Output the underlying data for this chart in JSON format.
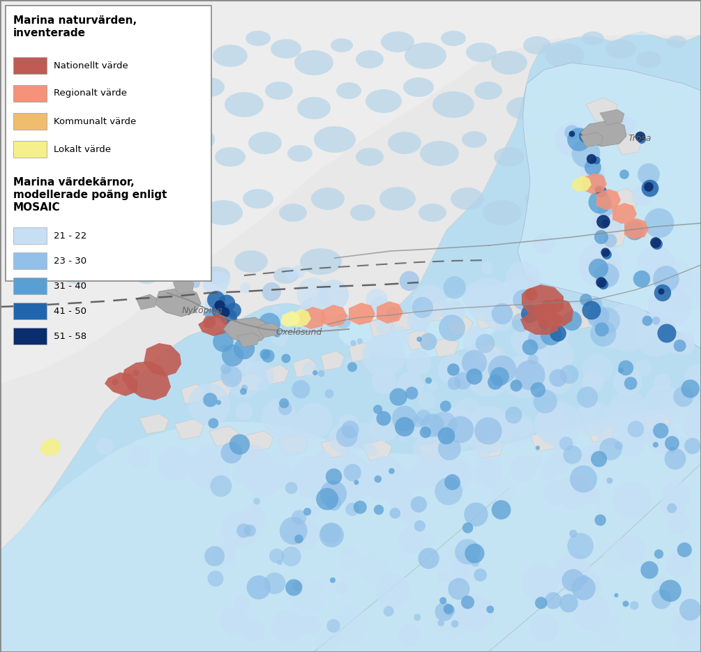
{
  "legend_section1_title": "Marina naturvärden,\ninventerade",
  "legend_section2_title": "Marina värdekärnor,\nmodellerade poäng enligt\nMOSAIC",
  "legend1_items": [
    {
      "label": "Nationellt värde",
      "color": "#bf5b52"
    },
    {
      "label": "Regionalt värde",
      "color": "#f4937a"
    },
    {
      "label": "Kommunalt värde",
      "color": "#f0bc6e"
    },
    {
      "label": "Lokalt värde",
      "color": "#f5f08a"
    }
  ],
  "legend2_items": [
    {
      "label": "21 - 22",
      "color": "#c6dff5"
    },
    {
      "label": "23 - 30",
      "color": "#93c0e8"
    },
    {
      "label": "31 - 40",
      "color": "#5a9fd4"
    },
    {
      "label": "41 - 50",
      "color": "#2166ac"
    },
    {
      "label": "51 - 58",
      "color": "#0a2d6e"
    }
  ],
  "bg_water_deep": "#b8ddf0",
  "bg_water_shallow": "#c8e8f6",
  "bg_water_coast": "#d4eef8",
  "land_main": "#e8e8e8",
  "land_light": "#f0f0f0",
  "inland_water": "#b4d4e8",
  "urban_gray": "#aaaaaa",
  "border_color": "#777777",
  "road_color": "#999999",
  "dashed_color": "#666666",
  "legend_bg": "#ffffff",
  "outer_border": "#888888",
  "figsize": [
    10.05,
    9.35
  ],
  "dpi": 100
}
